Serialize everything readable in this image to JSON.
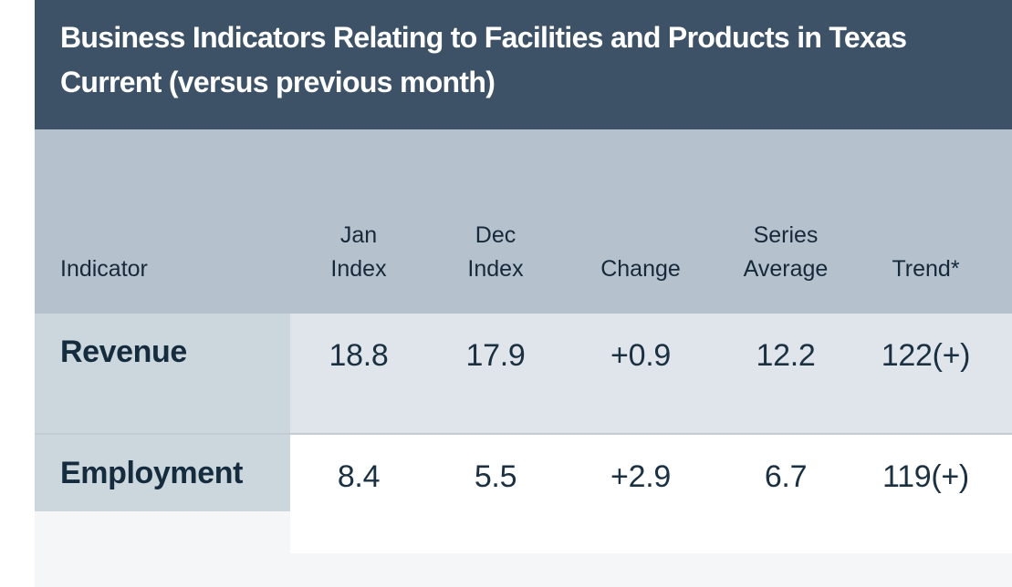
{
  "title": {
    "line1": "Business Indicators Relating to Facilities and Products in Texas",
    "line2": "Current (versus previous month)"
  },
  "header": {
    "indicator": "Indicator",
    "jan_l1": "Jan",
    "jan_l2": "Index",
    "dec_l1": "Dec",
    "dec_l2": "Index",
    "change": "Change",
    "series_l1": "Series",
    "series_l2": "Average",
    "trend": "Trend*"
  },
  "rows": [
    {
      "indicator": "Revenue",
      "jan": "18.8",
      "dec": "17.9",
      "change": "+0.9",
      "series": "12.2",
      "trend": "122(+)"
    },
    {
      "indicator": "Employment",
      "jan": "8.4",
      "dec": "5.5",
      "change": "+2.9",
      "series": "6.7",
      "trend": "119(+)"
    }
  ],
  "colors": {
    "title_band": "#3d5266",
    "title_text": "#ffffff",
    "header_row_bg": "#b5c1cc",
    "label_cell_bg": "#ccd6dd",
    "revenue_row_bg": "#dfe5ea",
    "employment_row_bg": "#ffffff",
    "partial_row_bg": "#f4f6f8",
    "divider": "#c3ccd4",
    "text_dark": "#1b3142"
  },
  "chart_data": {
    "type": "table",
    "title": "Business Indicators Relating to Facilities and Products in Texas",
    "subtitle": "Current (versus previous month)",
    "columns": [
      "Indicator",
      "Jan Index",
      "Dec Index",
      "Change",
      "Series Average",
      "Trend*"
    ],
    "rows": [
      [
        "Revenue",
        18.8,
        17.9,
        "+0.9",
        12.2,
        "122(+)"
      ],
      [
        "Employment",
        8.4,
        5.5,
        "+2.9",
        6.7,
        "119(+)"
      ]
    ]
  }
}
